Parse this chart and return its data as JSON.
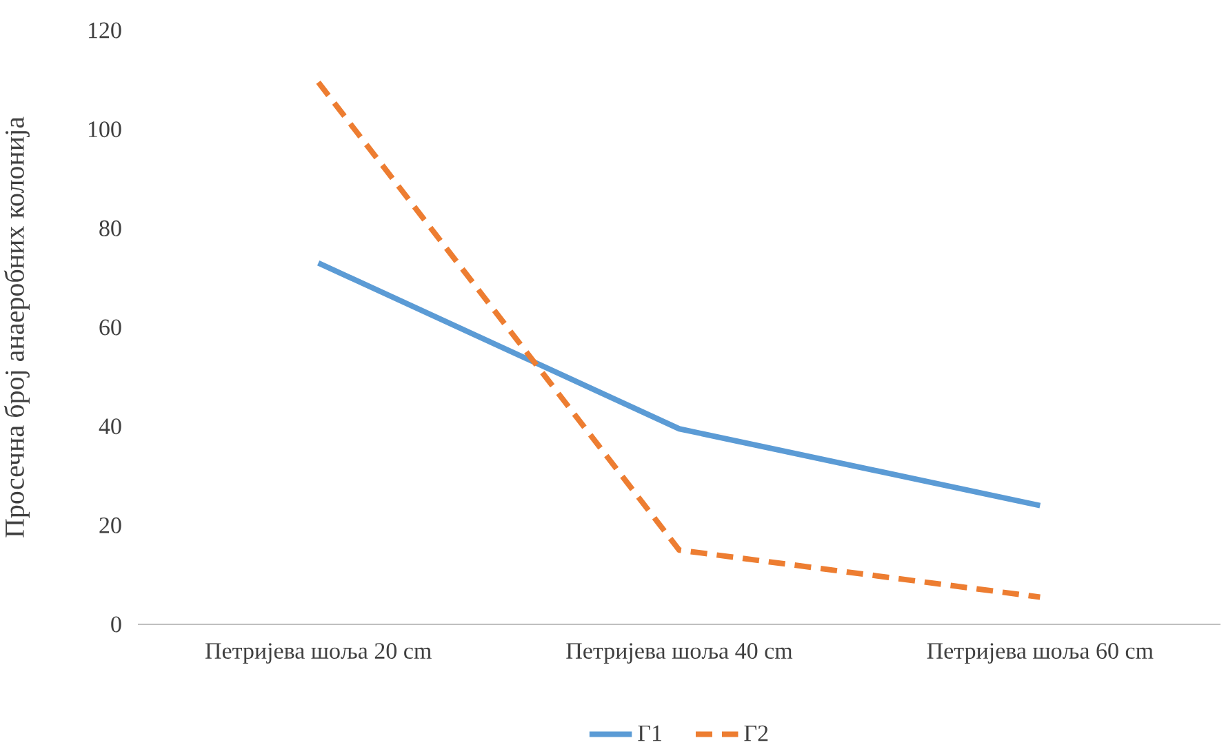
{
  "chart_data": {
    "type": "line",
    "ylabel": "Просечна број анаеробних колонија",
    "categories": [
      "Петријева шоља 20 cm",
      "Петријева шоља 40 cm",
      "Петријева шоља 60 cm"
    ],
    "series": [
      {
        "name": "Г1",
        "color": "#5b9bd5",
        "values": [
          73,
          39.5,
          24
        ],
        "line_style": "solid"
      },
      {
        "name": "Г2",
        "color": "#ed7d31",
        "values": [
          109.5,
          15,
          5.5
        ],
        "line_style": "dashed"
      }
    ],
    "ylim": [
      0,
      120
    ],
    "yticks": [
      0,
      20,
      40,
      60,
      80,
      100,
      120
    ],
    "grid": false,
    "legend": "bottom",
    "marker": "none"
  }
}
